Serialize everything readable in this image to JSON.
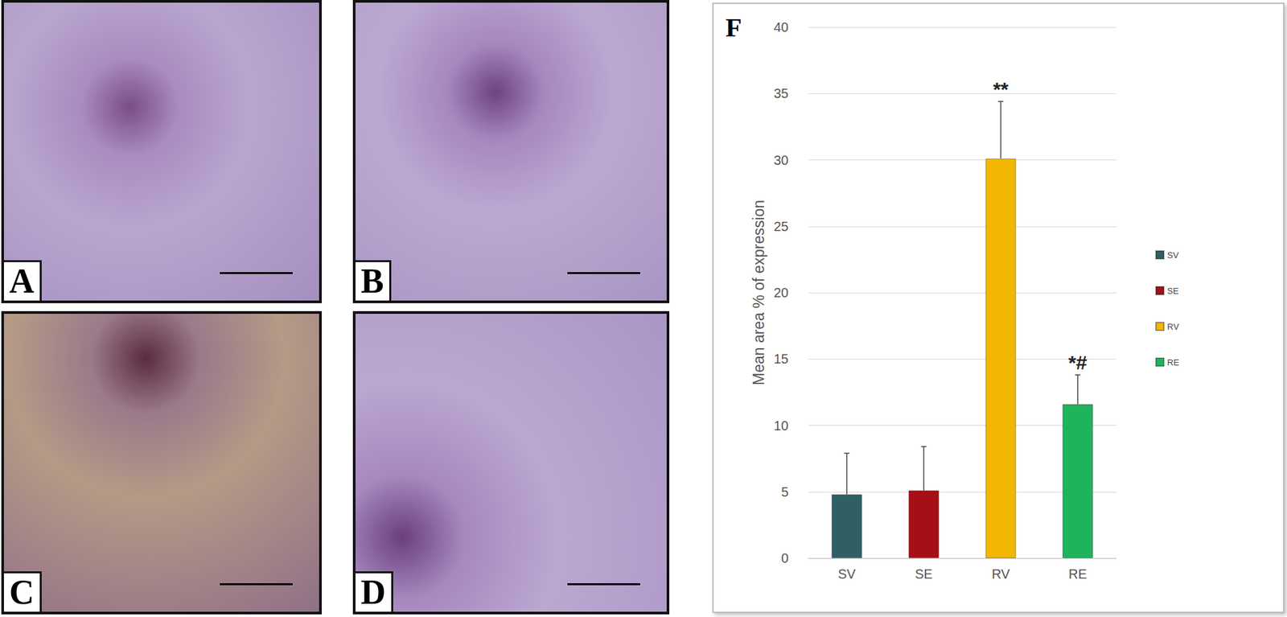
{
  "panels": [
    {
      "label": "A"
    },
    {
      "label": "B"
    },
    {
      "label": "C"
    },
    {
      "label": "D"
    }
  ],
  "chart_data": {
    "type": "bar",
    "panel_label": "F",
    "categories": [
      "SV",
      "SE",
      "RV",
      "RE"
    ],
    "values": [
      4.8,
      5.1,
      30.1,
      11.6
    ],
    "errors": [
      3.1,
      3.3,
      4.3,
      2.2
    ],
    "colors": [
      "#2f5f63",
      "#a50f15",
      "#f2b705",
      "#1fb35c"
    ],
    "annotations": [
      {
        "category": "RV",
        "text": "**"
      },
      {
        "category": "RE",
        "text": "*#"
      }
    ],
    "ylabel": "Mean area % of expression",
    "ylim": [
      0,
      40
    ],
    "yticks": [
      0,
      5,
      10,
      15,
      20,
      25,
      30,
      35,
      40
    ],
    "grid": true,
    "legend": "right"
  }
}
